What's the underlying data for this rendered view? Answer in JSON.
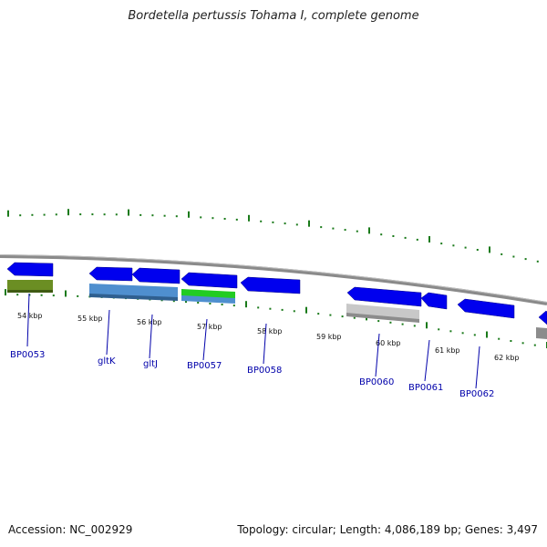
{
  "title": "Bordetella pertussis Tohama I, complete genome",
  "footer": {
    "accession": "Accession: NC_002929",
    "summary": "Topology: circular; Length: 4,086,189 bp; Genes: 3,497"
  },
  "colors": {
    "gene_blue": "#0000ee",
    "olive": "#6b8e23",
    "steel_blue": "#4f8fcf",
    "green": "#22cc22",
    "light_gray": "#c8c8c8",
    "dots": "#1a7a1a",
    "backbone": "#888888",
    "label": "#0000aa"
  },
  "ticks": [
    {
      "label": "54 kbp"
    },
    {
      "label": "55 kbp"
    },
    {
      "label": "56 kbp"
    },
    {
      "label": "57 kbp"
    },
    {
      "label": "58 kbp"
    },
    {
      "label": "59 kbp"
    },
    {
      "label": "60 kbp"
    },
    {
      "label": "61 kbp"
    },
    {
      "label": "62 kbp"
    }
  ],
  "genes": [
    {
      "label": "BP0053"
    },
    {
      "label": "gltK"
    },
    {
      "label": "gltJ"
    },
    {
      "label": "BP0057"
    },
    {
      "label": "BP0058"
    },
    {
      "label": "BP0060"
    },
    {
      "label": "BP0061"
    },
    {
      "label": "BP0062"
    }
  ]
}
